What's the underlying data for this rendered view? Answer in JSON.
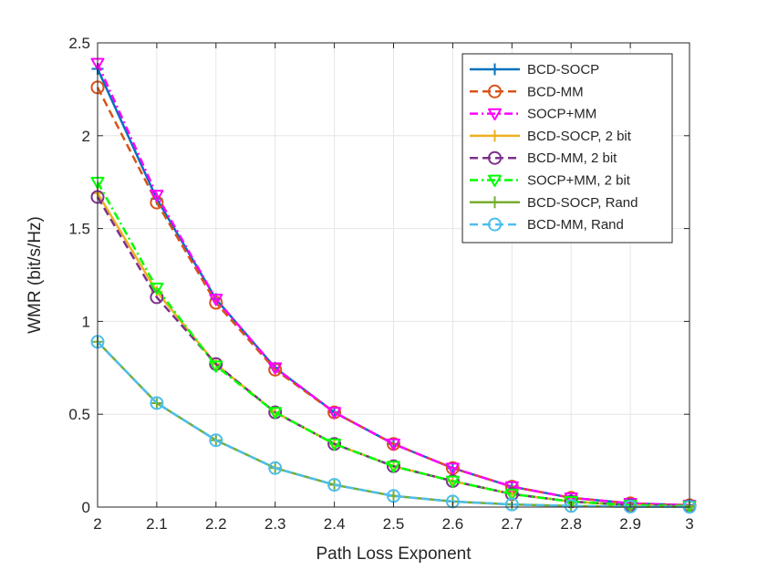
{
  "chart_data": {
    "type": "line",
    "title": "",
    "xlabel": "Path Loss Exponent",
    "ylabel": "WMR (bit/s/Hz)",
    "xlim": [
      2,
      3
    ],
    "ylim": [
      0,
      2.5
    ],
    "grid": true,
    "legend_position": "top-right",
    "x": [
      2,
      2.1,
      2.2,
      2.3,
      2.4,
      2.5,
      2.6,
      2.7,
      2.8,
      2.9,
      3
    ],
    "xticks": [
      "2",
      "2.1",
      "2.2",
      "2.3",
      "2.4",
      "2.5",
      "2.6",
      "2.7",
      "2.8",
      "2.9",
      "3"
    ],
    "yticks": [
      "0",
      "0.5",
      "1",
      "1.5",
      "2",
      "2.5"
    ],
    "series": [
      {
        "name": "BCD-SOCP",
        "color": "#0072BD",
        "dash": "solid",
        "marker": "plus",
        "values": [
          2.36,
          1.66,
          1.12,
          0.75,
          0.51,
          0.34,
          0.21,
          0.11,
          0.05,
          0.02,
          0.01
        ]
      },
      {
        "name": "BCD-MM",
        "color": "#D95319",
        "dash": "dashed",
        "marker": "circle",
        "values": [
          2.26,
          1.64,
          1.1,
          0.74,
          0.51,
          0.34,
          0.21,
          0.11,
          0.05,
          0.02,
          0.01
        ]
      },
      {
        "name": "SOCP+MM",
        "color": "#FF00FF",
        "dash": "dashdot",
        "marker": "triangle-down",
        "values": [
          2.39,
          1.68,
          1.12,
          0.75,
          0.51,
          0.34,
          0.21,
          0.11,
          0.05,
          0.02,
          0.01
        ]
      },
      {
        "name": "BCD-SOCP, 2 bit",
        "color": "#EDB120",
        "dash": "solid",
        "marker": "plus",
        "values": [
          1.69,
          1.16,
          0.77,
          0.51,
          0.34,
          0.22,
          0.14,
          0.07,
          0.03,
          0.01,
          0.005
        ]
      },
      {
        "name": "BCD-MM, 2 bit",
        "color": "#7E2F8E",
        "dash": "dashed",
        "marker": "circle",
        "values": [
          1.67,
          1.13,
          0.77,
          0.51,
          0.34,
          0.22,
          0.14,
          0.07,
          0.03,
          0.01,
          0.005
        ]
      },
      {
        "name": "SOCP+MM, 2 bit",
        "color": "#00FF00",
        "dash": "dashdot",
        "marker": "triangle-down",
        "values": [
          1.75,
          1.18,
          0.76,
          0.51,
          0.34,
          0.22,
          0.14,
          0.07,
          0.03,
          0.01,
          0.005
        ]
      },
      {
        "name": "BCD-SOCP, Rand",
        "color": "#77AC30",
        "dash": "solid",
        "marker": "plus",
        "values": [
          0.89,
          0.56,
          0.36,
          0.21,
          0.12,
          0.06,
          0.03,
          0.014,
          0.006,
          0.002,
          0.001
        ]
      },
      {
        "name": "BCD-MM, Rand",
        "color": "#4DBEEE",
        "dash": "dashed",
        "marker": "circle",
        "values": [
          0.89,
          0.56,
          0.36,
          0.21,
          0.12,
          0.06,
          0.03,
          0.014,
          0.006,
          0.002,
          0.001
        ]
      }
    ]
  }
}
